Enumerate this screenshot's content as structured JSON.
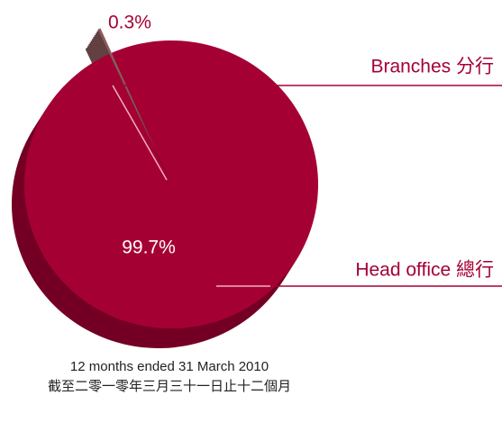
{
  "chart_data": {
    "type": "pie",
    "categories": [
      "Head office 總行",
      "Branches 分行"
    ],
    "values": [
      99.7,
      0.3
    ],
    "value_labels": [
      "99.7%",
      "0.3%"
    ],
    "colors": [
      "#a50034",
      "#8e5b5d"
    ],
    "caption": [
      "12 months ended 31 March 2010",
      "截至二零一零年三月三十一日止十二個月"
    ]
  }
}
